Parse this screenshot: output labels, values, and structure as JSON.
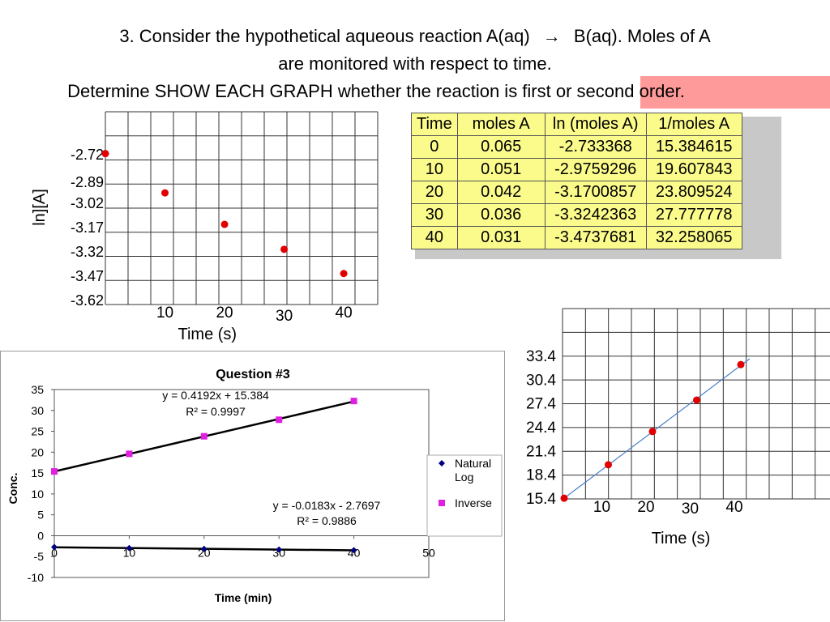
{
  "title": {
    "line1": "3.  Consider the hypothetical aqueous reaction A(aq)",
    "arrow": "→",
    "line1b": "B(aq).  Moles of A",
    "line2": "are monitored with respect to time.",
    "line3a": "Determine SHOW EACH GRAPH whether the reaction is first or ",
    "line3b": "second order."
  },
  "colors": {
    "highlight": "#ff9a9a",
    "point_red": "#e00000",
    "magenta": "#e020e0",
    "navy": "#000080",
    "table_bg": "#fbfb8c",
    "fit_blue": "#4a7fc8"
  },
  "table": {
    "headers": [
      "Time",
      "moles A",
      "ln (moles A)",
      "1/moles A"
    ],
    "rows": [
      [
        "0",
        "0.065",
        "-2.733368",
        "15.384615"
      ],
      [
        "10",
        "0.051",
        "-2.9759296",
        "19.607843"
      ],
      [
        "20",
        "0.042",
        "-3.1700857",
        "23.809524"
      ],
      [
        "30",
        "0.036",
        "-3.3242363",
        "27.777778"
      ],
      [
        "40",
        "0.031",
        "-3.4737681",
        "32.258065"
      ]
    ]
  },
  "chart_data": [
    {
      "type": "scatter",
      "ylabel": "ln][A]",
      "xlabel": "Time (s)",
      "x_tick_labels": [
        "10",
        "20",
        "30",
        "40"
      ],
      "y_tick_labels": [
        "-2.72",
        "-2.89",
        "-3.02",
        "-3.17",
        "-3.32",
        "-3.47",
        "-3.62"
      ],
      "x": [
        0,
        10,
        20,
        30,
        40
      ],
      "y": [
        -2.733368,
        -2.9759296,
        -3.1700857,
        -3.3242363,
        -3.4737681
      ],
      "grid": true
    },
    {
      "type": "scatter",
      "title": "Question #3",
      "xlabel": "Time (min)",
      "ylabel": "Conc.",
      "xlim": [
        0,
        50
      ],
      "ylim": [
        -10,
        35
      ],
      "x_ticks": [
        "0",
        "10",
        "20",
        "30",
        "40",
        "50"
      ],
      "y_ticks": [
        "35",
        "30",
        "25",
        "20",
        "15",
        "10",
        "5",
        "0",
        "-5",
        "-10"
      ],
      "legend_position": "right",
      "series": [
        {
          "name": "Natural Log",
          "marker": "diamond",
          "x": [
            0,
            10,
            20,
            30,
            40
          ],
          "y": [
            -2.733368,
            -2.9759296,
            -3.1700857,
            -3.3242363,
            -3.4737681
          ],
          "trend_label": "y = -0.0183x - 2.7697",
          "r2_label": "R² = 0.9886"
        },
        {
          "name": "Inverse",
          "marker": "square",
          "x": [
            0,
            10,
            20,
            30,
            40
          ],
          "y": [
            15.384615,
            19.607843,
            23.809524,
            27.777778,
            32.258065
          ],
          "trend_label": "y = 0.4192x + 15.384",
          "r2_label": "R² = 0.9997"
        }
      ]
    },
    {
      "type": "scatter",
      "xlabel": "Time (s)",
      "x_tick_labels": [
        "10",
        "20",
        "30",
        "40"
      ],
      "y_tick_labels": [
        "33.4",
        "30.4",
        "27.4",
        "24.4",
        "21.4",
        "18.4",
        "15.4"
      ],
      "x": [
        0,
        10,
        20,
        30,
        40
      ],
      "y": [
        15.384615,
        19.607843,
        23.809524,
        27.777778,
        32.258065
      ],
      "trend": true,
      "grid": true
    }
  ]
}
